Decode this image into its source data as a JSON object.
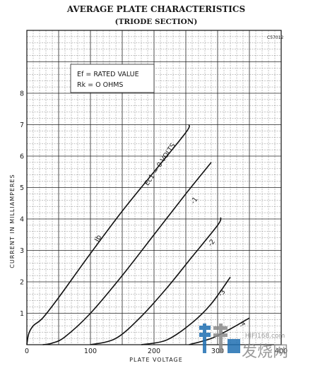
{
  "chart_data": {
    "type": "line",
    "title": "AVERAGE PLATE CHARACTERISTICS",
    "subtitle": "(TRIODE SECTION)",
    "figure_code": "C57012",
    "xlabel": "PLATE VOLTAGE",
    "ylabel": "CURRENT IN MILLIAMPERES",
    "xlim": [
      0,
      400
    ],
    "ylim": [
      0,
      10
    ],
    "x_ticks": [
      0,
      100,
      200,
      300,
      400
    ],
    "y_ticks": [
      1,
      2,
      3,
      4,
      5,
      6,
      7,
      8
    ],
    "grid": true,
    "legend_box": {
      "line1": "Ef = RATED VALUE",
      "line2": "Rk = O OHMS"
    },
    "curve_label": "Ib",
    "series": [
      {
        "name": "Ec1 = 0 VOLTS",
        "points": [
          [
            0,
            0
          ],
          [
            3,
            0.35
          ],
          [
            10,
            0.6
          ],
          [
            25,
            0.85
          ],
          [
            50,
            1.5
          ],
          [
            100,
            2.9
          ],
          [
            150,
            4.25
          ],
          [
            200,
            5.5
          ],
          [
            250,
            6.75
          ],
          [
            255,
            7.0
          ]
        ]
      },
      {
        "name": "-1",
        "points": [
          [
            25,
            0
          ],
          [
            40,
            0.05
          ],
          [
            60,
            0.25
          ],
          [
            100,
            1.0
          ],
          [
            150,
            2.2
          ],
          [
            200,
            3.5
          ],
          [
            250,
            4.8
          ],
          [
            290,
            5.8
          ]
        ]
      },
      {
        "name": "-2",
        "points": [
          [
            100,
            0
          ],
          [
            140,
            0.2
          ],
          [
            180,
            0.9
          ],
          [
            220,
            1.8
          ],
          [
            260,
            2.8
          ],
          [
            300,
            3.8
          ],
          [
            305,
            4.05
          ]
        ]
      },
      {
        "name": "-3",
        "points": [
          [
            180,
            0
          ],
          [
            220,
            0.15
          ],
          [
            260,
            0.7
          ],
          [
            290,
            1.3
          ],
          [
            320,
            2.15
          ]
        ]
      },
      {
        "name": "-4",
        "points": [
          [
            255,
            0
          ],
          [
            290,
            0.2
          ],
          [
            320,
            0.5
          ],
          [
            350,
            0.85
          ]
        ]
      }
    ]
  },
  "watermark": {
    "site": "HIFI168.com",
    "brand": "发烧网"
  },
  "colors": {
    "ink": "#111111",
    "watermark_blue": "#1f6fb2",
    "watermark_gray": "#8a8a8a"
  }
}
